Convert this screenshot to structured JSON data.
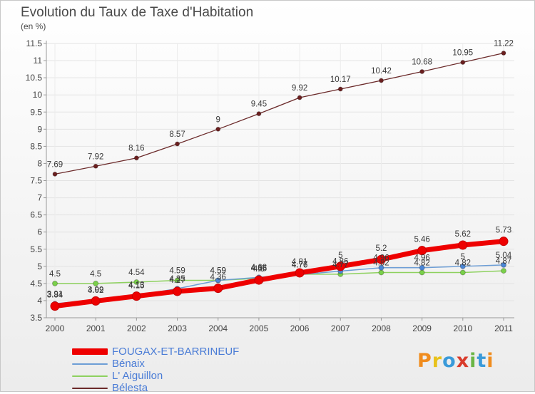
{
  "header": {
    "title": "Evolution du Taux de Taxe d'Habitation",
    "unit": "(en %)"
  },
  "logo": {
    "text": "Proxiti",
    "colors": [
      "#f08c1e",
      "#e8c21c",
      "#3a9ad9",
      "#d93b2b",
      "#6ab545",
      "#3a9ad9",
      "#f08c1e"
    ]
  },
  "chart_data": {
    "type": "line",
    "title": "Evolution du Taux de Taxe d'Habitation",
    "ylabel": "(en %)",
    "xlabel": "",
    "x": [
      "2000",
      "2001",
      "2002",
      "2003",
      "2004",
      "2005",
      "2006",
      "2007",
      "2008",
      "2009",
      "2010",
      "2011"
    ],
    "ylim": [
      3.5,
      11.5
    ],
    "yticks": [
      "3.5",
      "4",
      "4.5",
      "5",
      "5.5",
      "6",
      "6.5",
      "7",
      "7.5",
      "8",
      "8.5",
      "9",
      "9.5",
      "10",
      "10.5",
      "11",
      "11.5"
    ],
    "grid": true,
    "legend_position": "bottom-left",
    "series": [
      {
        "name": "FOUGAX-ET-BARRINEUF",
        "color": "#ee0000",
        "values": [
          3.84,
          3.99,
          4.13,
          4.27,
          4.36,
          4.6,
          4.81,
          5.0,
          5.2,
          5.46,
          5.62,
          5.73
        ],
        "labels": [
          "3.84",
          "3.99",
          "4.13",
          "4.27",
          "4.36",
          "4.6",
          "4.81",
          "5",
          "5.2",
          "5.46",
          "5.62",
          "5.73"
        ]
      },
      {
        "name": "Bénaix",
        "color": "#6d9ed6",
        "values": [
          3.91,
          4.02,
          4.15,
          4.35,
          4.59,
          4.68,
          4.76,
          4.86,
          4.96,
          4.96,
          5.0,
          5.04
        ],
        "labels": [
          "3.91",
          "4.02",
          "4.15",
          "4.35",
          "4.59",
          "4.68",
          "4.76",
          "4.86",
          "4.96",
          "4.96",
          "5",
          "5.04"
        ]
      },
      {
        "name": "L' Aiguillon",
        "color": "#8ed15f",
        "values": [
          4.5,
          4.5,
          4.54,
          4.59,
          4.59,
          4.65,
          4.77,
          4.77,
          4.82,
          4.82,
          4.82,
          4.87
        ],
        "labels": [
          "4.5",
          "4.5",
          "4.54",
          "4.59",
          "4.59",
          "4.65",
          "4.77",
          "4.77",
          "4.82",
          "4.82",
          "4.82",
          "4.87"
        ]
      },
      {
        "name": "Bélesta",
        "color": "#6b2a2a",
        "values": [
          7.69,
          7.92,
          8.16,
          8.57,
          9.0,
          9.45,
          9.92,
          10.17,
          10.42,
          10.68,
          10.95,
          11.22
        ],
        "labels": [
          "7.69",
          "7.92",
          "8.16",
          "8.57",
          "9",
          "9.45",
          "9.92",
          "10.17",
          "10.42",
          "10.68",
          "10.95",
          "11.22"
        ]
      }
    ]
  }
}
